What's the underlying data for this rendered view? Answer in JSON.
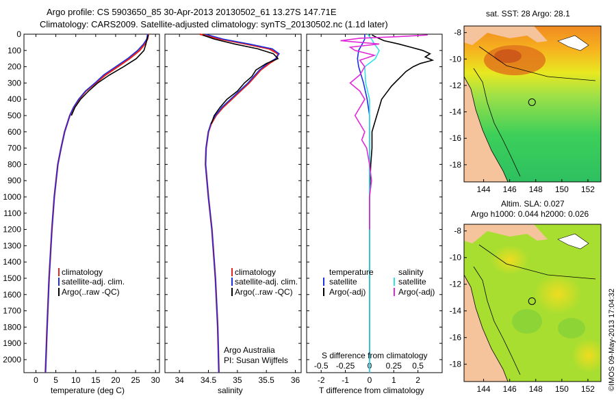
{
  "header": {
    "title_line1": "Argo profile: CS 5903650_85 30-Apr-2013 20130502_61 13.27S 147.71E",
    "title_line2": "Climatology: CARS2009. Satellite-adjusted climatology: synTS_20130502.nc (1.1d later)"
  },
  "colors": {
    "climatology": "#e8231d",
    "satellite": "#1c2fe0",
    "argo": "#000000",
    "sat_s": "#2fe0e8",
    "argo_s": "#e028d8",
    "land": "#f5c49c"
  },
  "chart_data": [
    {
      "type": "line",
      "id": "temperature",
      "xlabel": "temperature (deg C)",
      "ylabel": "",
      "xlim": [
        -3,
        31
      ],
      "ylim": [
        2080,
        0
      ],
      "xticks": [
        0,
        5,
        10,
        15,
        20,
        25,
        30
      ],
      "yticks": [
        0,
        100,
        200,
        300,
        400,
        500,
        600,
        700,
        800,
        900,
        1000,
        1100,
        1200,
        1300,
        1400,
        1500,
        1600,
        1700,
        1800,
        1900,
        2000
      ],
      "legend": [
        "climatology",
        "satellite-adj. clim.",
        "Argo(..raw -QC)"
      ],
      "series": [
        {
          "name": "climatology",
          "depth": [
            0,
            30,
            60,
            100,
            150,
            200,
            250,
            300,
            350,
            400,
            450,
            500,
            600,
            700,
            800,
            1000,
            1200,
            1500,
            1800,
            2080
          ],
          "values": [
            28.2,
            28.0,
            27.3,
            26.0,
            23.5,
            20.5,
            17.5,
            15.0,
            12.5,
            10.8,
            9.5,
            8.5,
            7.2,
            6.3,
            5.5,
            4.6,
            4.0,
            3.3,
            2.8,
            2.4
          ]
        },
        {
          "name": "satellite-adj. clim.",
          "depth": [
            0,
            30,
            60,
            100,
            150,
            200,
            250,
            300,
            350,
            400,
            450,
            500,
            600,
            700,
            800,
            1000,
            1200,
            1500,
            1800,
            2080
          ],
          "values": [
            28.0,
            27.8,
            27.0,
            25.5,
            23.0,
            20.0,
            17.0,
            14.8,
            12.4,
            10.7,
            9.4,
            8.5,
            7.2,
            6.3,
            5.5,
            4.6,
            4.0,
            3.3,
            2.8,
            2.4
          ]
        },
        {
          "name": "Argo(..raw -QC)",
          "depth": [
            5,
            30,
            60,
            100,
            150,
            200,
            250,
            300,
            350,
            400,
            450,
            500
          ],
          "values": [
            28.2,
            27.9,
            27.6,
            27.1,
            25.2,
            22.0,
            18.5,
            15.5,
            13.2,
            11.2,
            9.8,
            8.9
          ]
        }
      ]
    },
    {
      "type": "line",
      "id": "salinity",
      "xlabel": "salinity",
      "ylabel": "",
      "xlim": [
        33.75,
        36.1
      ],
      "ylim": [
        2080,
        0
      ],
      "xticks": [
        34,
        34.5,
        35,
        35.5,
        36
      ],
      "legend": [
        "climatology",
        "satellite-adj. clim.",
        "Argo(..raw -QC)"
      ],
      "annotation": [
        "Argo Australia",
        "PI: Susan Wijffels"
      ],
      "series": [
        {
          "name": "climatology",
          "depth": [
            0,
            30,
            60,
            90,
            120,
            150,
            180,
            220,
            260,
            300,
            350,
            400,
            450,
            500,
            550,
            600,
            700,
            800,
            1000,
            1200,
            1500,
            1800,
            2080
          ],
          "values": [
            34.35,
            34.7,
            35.15,
            35.55,
            35.7,
            35.68,
            35.55,
            35.4,
            35.3,
            35.2,
            35.05,
            34.9,
            34.75,
            34.63,
            34.55,
            34.5,
            34.46,
            34.45,
            34.5,
            34.56,
            34.62,
            34.66,
            34.68
          ]
        },
        {
          "name": "satellite-adj. clim.",
          "depth": [
            0,
            30,
            60,
            90,
            120,
            150,
            180,
            220,
            260,
            300,
            350,
            400,
            450,
            500,
            550,
            600,
            700,
            800,
            1000,
            1200,
            1500,
            1800,
            2080
          ],
          "values": [
            34.45,
            34.75,
            35.2,
            35.6,
            35.72,
            35.66,
            35.52,
            35.38,
            35.28,
            35.18,
            35.03,
            34.88,
            34.73,
            34.62,
            34.54,
            34.5,
            34.46,
            34.45,
            34.5,
            34.56,
            34.62,
            34.66,
            34.68
          ]
        },
        {
          "name": "Argo(..raw -QC)",
          "depth": [
            5,
            30,
            60,
            90,
            120,
            150,
            180,
            220,
            260,
            300,
            350,
            400,
            450,
            500,
            550
          ],
          "values": [
            34.4,
            34.6,
            34.95,
            35.35,
            35.62,
            35.7,
            35.5,
            35.32,
            35.25,
            35.12,
            35.0,
            34.82,
            34.7,
            34.6,
            34.55
          ]
        }
      ]
    },
    {
      "type": "line",
      "id": "difference",
      "xlabel": "T difference from climatology",
      "xlabel_top": "S difference from climatology",
      "xlim": [
        -2.6,
        3.0
      ],
      "ylim": [
        2080,
        0
      ],
      "xticks": [
        -2,
        -1,
        0,
        1,
        2
      ],
      "xticks_top": [
        -0.5,
        -0.25,
        0,
        0.25,
        0.5
      ],
      "legend_left": [
        "temperature",
        "satellite",
        "Argo(-adj)"
      ],
      "legend_right": [
        "salinity",
        "satellite",
        "Argo(-adj)"
      ],
      "series": [
        {
          "name": "temperature satellite",
          "depth": [
            0,
            30,
            60,
            100,
            150,
            200,
            300,
            400,
            500,
            600,
            800,
            1000,
            1500,
            2080
          ],
          "values": [
            -0.2,
            -0.2,
            -0.3,
            -0.45,
            -0.5,
            -0.45,
            -0.25,
            -0.1,
            0.0,
            0.0,
            0.0,
            0.0,
            0.0,
            0.0
          ]
        },
        {
          "name": "temperature Argo(-adj)",
          "depth": [
            5,
            20,
            40,
            60,
            80,
            100,
            120,
            140,
            160,
            180,
            200,
            230,
            260,
            290,
            320,
            360,
            400,
            450,
            500,
            550,
            600,
            700,
            800,
            1000,
            1500,
            2000
          ],
          "values": [
            0.1,
            0.3,
            0.6,
            1.2,
            1.7,
            2.2,
            2.5,
            2.3,
            2.6,
            2.1,
            1.8,
            1.5,
            1.3,
            1.1,
            0.9,
            0.7,
            0.5,
            0.4,
            0.3,
            0.2,
            0.1,
            0.1,
            0.05,
            0.0,
            0.0,
            0.0
          ]
        },
        {
          "name": "salinity satellite",
          "depth": [
            0,
            30,
            60,
            100,
            150,
            200,
            300,
            400,
            500,
            700,
            1000,
            1500,
            2080
          ],
          "values": [
            -0.02,
            0.02,
            0.05,
            0.1,
            0.06,
            -0.05,
            -0.04,
            0.0,
            0.0,
            0.0,
            0.0,
            0.0,
            0.0
          ]
        },
        {
          "name": "salinity Argo(-adj)",
          "depth": [
            5,
            15,
            25,
            40,
            60,
            80,
            100,
            130,
            160,
            200,
            250,
            300,
            350,
            400,
            450,
            500,
            550,
            600,
            650,
            700,
            800,
            900,
            1000,
            1200
          ],
          "values": [
            0.6,
            0.3,
            -0.1,
            -0.3,
            0.1,
            -0.2,
            -0.15,
            0.05,
            -0.1,
            -0.05,
            -0.1,
            -0.2,
            -0.1,
            -0.05,
            -0.1,
            -0.15,
            -0.1,
            -0.05,
            -0.08,
            -0.03,
            0.0,
            0.02,
            0.0,
            0.0
          ]
        }
      ]
    }
  ],
  "maps": {
    "sst": {
      "title": "sat. SST: 28 Argo: 28.1",
      "xticks": [
        144,
        146,
        148,
        150,
        152
      ],
      "yticks": [
        -8,
        -10,
        -12,
        -14,
        -16,
        -18
      ],
      "lon_range": [
        142.5,
        153
      ],
      "lat_range": [
        -19.3,
        -7.5
      ],
      "profile_lon": 147.71,
      "profile_lat": -13.27
    },
    "sla": {
      "title_line1": "Altim. SLA: 0.027",
      "title_line2": "Argo h1000: 0.044 h2000: 0.026",
      "xticks": [
        144,
        146,
        148,
        150,
        152
      ],
      "yticks": [
        -8,
        -10,
        -12,
        -14,
        -16,
        -18
      ],
      "lon_range": [
        142.5,
        153
      ],
      "lat_range": [
        -19.3,
        -7.5
      ],
      "profile_lon": 147.71,
      "profile_lat": -13.27
    }
  },
  "footer": {
    "credit": "©IMOS 09-May-2013 17:04:32"
  }
}
